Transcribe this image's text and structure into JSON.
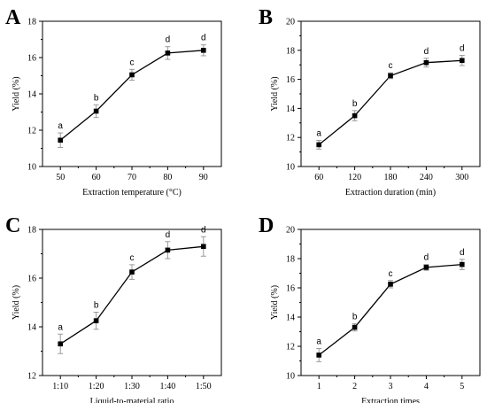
{
  "chart_data": [
    {
      "type": "line",
      "panel": "A",
      "xlabel": "Extraction temperature (°C)",
      "ylabel": "Yield (%)",
      "categories": [
        "50",
        "60",
        "70",
        "80",
        "90"
      ],
      "values": [
        11.45,
        13.05,
        15.05,
        16.25,
        16.4
      ],
      "errors": [
        0.4,
        0.35,
        0.3,
        0.35,
        0.3
      ],
      "significance": [
        "a",
        "b",
        "c",
        "d",
        "d"
      ],
      "ylim": [
        10,
        18
      ],
      "yticks": [
        "10",
        "12",
        "14",
        "16",
        "18"
      ],
      "grid": false
    },
    {
      "type": "line",
      "panel": "B",
      "xlabel": "Extraction duration (min)",
      "ylabel": "Yield (%)",
      "categories": [
        "60",
        "120",
        "180",
        "240",
        "300"
      ],
      "values": [
        11.5,
        13.5,
        16.25,
        17.15,
        17.3
      ],
      "errors": [
        0.3,
        0.35,
        0.2,
        0.3,
        0.35
      ],
      "significance": [
        "a",
        "b",
        "c",
        "d",
        "d"
      ],
      "ylim": [
        10,
        20
      ],
      "yticks": [
        "10",
        "12",
        "14",
        "16",
        "18",
        "20"
      ],
      "grid": false
    },
    {
      "type": "line",
      "panel": "C",
      "xlabel": "Liquid-to-material ratio",
      "ylabel": "Yield (%)",
      "categories": [
        "1:10",
        "1:20",
        "1:30",
        "1:40",
        "1:50"
      ],
      "values": [
        13.3,
        14.25,
        16.25,
        17.15,
        17.3
      ],
      "errors": [
        0.4,
        0.35,
        0.3,
        0.35,
        0.4
      ],
      "significance": [
        "a",
        "b",
        "c",
        "d",
        "d"
      ],
      "ylim": [
        12,
        18
      ],
      "yticks": [
        "12",
        "14",
        "16",
        "18"
      ],
      "grid": false
    },
    {
      "type": "line",
      "panel": "D",
      "xlabel": "Extraction times",
      "ylabel": "Yield (%)",
      "categories": [
        "1",
        "2",
        "3",
        "4",
        "5"
      ],
      "values": [
        11.4,
        13.3,
        16.25,
        17.4,
        17.6
      ],
      "errors": [
        0.45,
        0.25,
        0.25,
        0.2,
        0.35
      ],
      "significance": [
        "a",
        "b",
        "c",
        "d",
        "d"
      ],
      "ylim": [
        10,
        20
      ],
      "yticks": [
        "10",
        "12",
        "14",
        "16",
        "18",
        "20"
      ],
      "grid": false
    }
  ],
  "colors": {
    "line": "#000000",
    "marker": "#000000",
    "errorbar": "#9a9a9a"
  }
}
